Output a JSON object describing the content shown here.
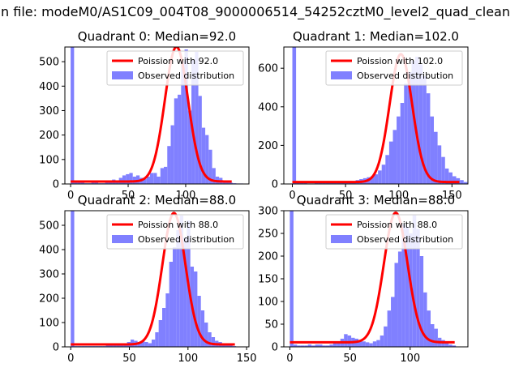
{
  "figure_title": "n file: modeM0/AS1C09_004T08_9000006514_54252cztM0_level2_quad_clean",
  "colors": {
    "poisson": "#ff0000",
    "hist": "#8080ff",
    "axes": "#000000"
  },
  "legend": {
    "observed_label": "Observed distribution"
  },
  "chart_data": [
    {
      "type": "bar",
      "title": "Quadrant 0: Median=92.0",
      "median": 92.0,
      "poisson_label": "Poission with 92.0",
      "xlim": [
        -5,
        155
      ],
      "ylim": [
        0,
        560
      ],
      "xticks": [
        0,
        50,
        100
      ],
      "yticks": [
        0,
        100,
        200,
        300,
        400,
        500
      ],
      "bins": {
        "start": 0,
        "width": 3,
        "values": [
          560,
          5,
          5,
          5,
          3,
          3,
          5,
          5,
          3,
          3,
          8,
          12,
          18,
          15,
          25,
          35,
          40,
          45,
          30,
          35,
          25,
          20,
          30,
          45,
          45,
          30,
          65,
          70,
          155,
          240,
          350,
          365,
          500,
          550,
          300,
          510,
          540,
          360,
          230,
          200,
          140,
          65,
          30,
          25,
          15,
          10,
          5,
          3,
          2,
          2
        ]
      },
      "curve": {
        "x0": 0,
        "x1": 140
      }
    },
    {
      "type": "bar",
      "title": "Quadrant 1: Median=102.0",
      "median": 102.0,
      "poisson_label": "Poission with 102.0",
      "xlim": [
        -8,
        165
      ],
      "ylim": [
        0,
        710
      ],
      "xticks": [
        0,
        50,
        100,
        150
      ],
      "yticks": [
        0,
        200,
        400,
        600
      ],
      "bins": {
        "start": 0,
        "width": 3.5,
        "values": [
          710,
          5,
          5,
          5,
          3,
          3,
          5,
          5,
          5,
          5,
          8,
          5,
          5,
          5,
          10,
          15,
          10,
          20,
          25,
          30,
          35,
          40,
          50,
          70,
          100,
          150,
          220,
          280,
          350,
          420,
          520,
          580,
          640,
          660,
          620,
          560,
          470,
          350,
          270,
          200,
          140,
          80,
          60,
          40,
          30,
          20,
          10
        ]
      },
      "curve": {
        "x0": 0,
        "x1": 157
      }
    },
    {
      "type": "bar",
      "title": "Quadrant 2: Median=88.0",
      "median": 88.0,
      "poisson_label": "Poission with 88.0",
      "xlim": [
        -5,
        152
      ],
      "ylim": [
        0,
        560
      ],
      "xticks": [
        0,
        50,
        100,
        150
      ],
      "yticks": [
        0,
        100,
        200,
        300,
        400,
        500
      ],
      "bins": {
        "start": 0,
        "width": 3,
        "values": [
          560,
          3,
          3,
          3,
          3,
          3,
          3,
          3,
          3,
          3,
          5,
          5,
          15,
          10,
          10,
          15,
          20,
          30,
          25,
          20,
          25,
          20,
          15,
          30,
          60,
          110,
          160,
          220,
          350,
          410,
          480,
          540,
          450,
          520,
          330,
          310,
          210,
          150,
          100,
          60,
          40,
          25,
          20,
          10,
          5,
          5,
          3
        ]
      },
      "curve": {
        "x0": 0,
        "x1": 140
      }
    },
    {
      "type": "bar",
      "title": "Quadrant 3: Median=88.0",
      "median": 88.0,
      "poisson_label": "Poission with 88.0",
      "xlim": [
        -5,
        148
      ],
      "ylim": [
        0,
        300
      ],
      "xticks": [
        0,
        50,
        100
      ],
      "yticks": [
        0,
        50,
        100,
        150,
        200,
        250,
        300
      ],
      "bins": {
        "start": 0,
        "width": 3,
        "values": [
          300,
          5,
          3,
          3,
          3,
          5,
          3,
          5,
          5,
          3,
          3,
          5,
          8,
          12,
          18,
          28,
          25,
          20,
          18,
          15,
          12,
          10,
          8,
          12,
          15,
          25,
          45,
          80,
          110,
          185,
          210,
          270,
          265,
          250,
          290,
          260,
          200,
          120,
          80,
          50,
          40,
          20,
          15,
          10,
          5,
          3
        ]
      },
      "curve": {
        "x0": 0,
        "x1": 137
      }
    }
  ]
}
